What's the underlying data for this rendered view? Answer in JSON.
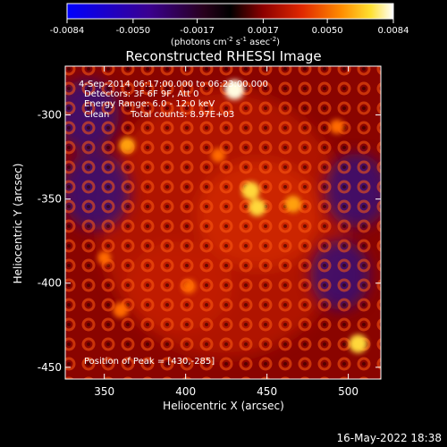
{
  "chart_data": {
    "type": "heatmap",
    "title": "Reconstructed RHESSI Image",
    "xlabel": "Heliocentric X (arcsec)",
    "ylabel": "Heliocentric Y (arcsec)",
    "xlim": [
      326,
      520
    ],
    "ylim": [
      -457,
      -271
    ],
    "x_ticks": [
      "350",
      "400",
      "450",
      "500"
    ],
    "y_ticks": [
      "-300",
      "-350",
      "-400",
      "-450"
    ],
    "colorbar": {
      "range": [
        -0.0084,
        0.0084
      ],
      "tick_labels": [
        "-0.0084",
        "-0.0050",
        "-0.0017",
        "0.0017",
        "0.0050",
        "0.0084"
      ],
      "units_line1": "(photons cm",
      "units_sup1": "-2",
      "units_line2": " s",
      "units_sup2": "-1",
      "units_line3": " asec",
      "units_sup3": "-2",
      "units_line4": ")"
    },
    "annotations": {
      "time": "4-Sep-2014 06:17:00.000 to 06:23:00.000",
      "detectors": "Detectors: 3F 6F 9F, Att 0",
      "energy": "Energy Range: 6.0 - 12.0 keV",
      "clean_label": "Clean",
      "total_counts": "Total counts: 8.97E+03",
      "peak": "Position of Peak = [430,-285]"
    },
    "bright_sources": [
      {
        "x": 430,
        "y": -285,
        "value": 0.0084
      },
      {
        "x": 506,
        "y": -436,
        "value": 0.0075
      },
      {
        "x": 440,
        "y": -345,
        "value": 0.007
      },
      {
        "x": 444,
        "y": -355,
        "value": 0.0065
      },
      {
        "x": 466,
        "y": -353,
        "value": 0.006
      },
      {
        "x": 364,
        "y": -318,
        "value": 0.0055
      },
      {
        "x": 360,
        "y": -416,
        "value": 0.005
      },
      {
        "x": 493,
        "y": -307,
        "value": 0.0045
      },
      {
        "x": 420,
        "y": -324,
        "value": 0.004
      },
      {
        "x": 402,
        "y": -402,
        "value": 0.004
      },
      {
        "x": 350,
        "y": -385,
        "value": 0.0035
      }
    ],
    "negative_regions": [
      {
        "x": 345,
        "y": -345,
        "value": -0.005
      },
      {
        "x": 340,
        "y": -300,
        "value": -0.0035
      },
      {
        "x": 505,
        "y": -345,
        "value": -0.004
      },
      {
        "x": 495,
        "y": -395,
        "value": -0.003
      }
    ]
  },
  "footer": {
    "date": "16-May-2022 18:38"
  }
}
